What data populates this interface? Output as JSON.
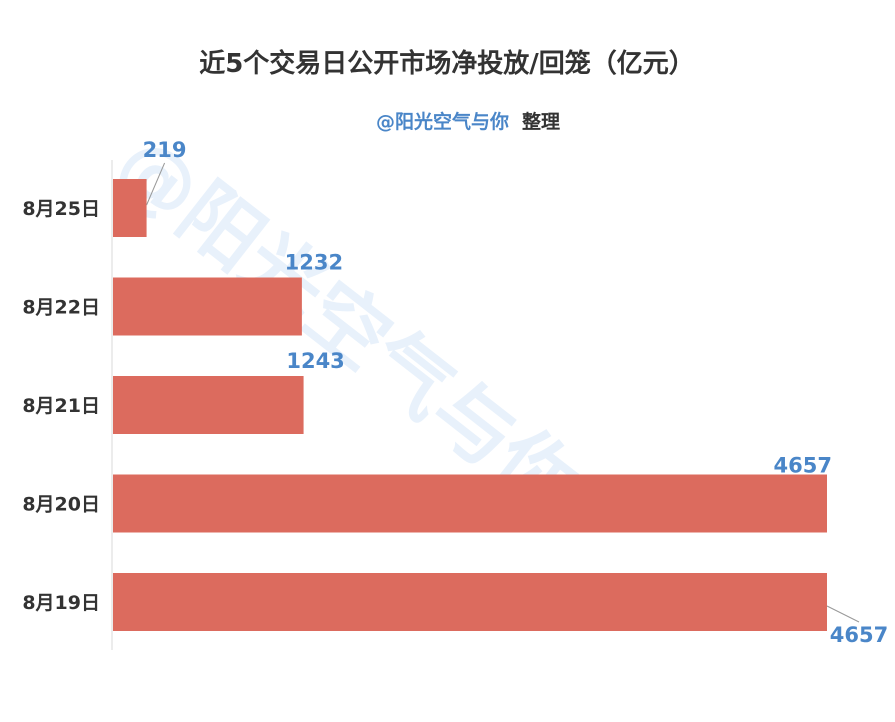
{
  "chart_data": {
    "type": "bar",
    "orientation": "horizontal",
    "title": "近5个交易日公开市场净投放/回笼（亿元）",
    "subtitle": {
      "handle": "@阳光空气与你",
      "suffix": "整理"
    },
    "watermark": "@阳光空气与你",
    "categories": [
      "8月25日",
      "8月22日",
      "8月21日",
      "8月20日",
      "8月19日"
    ],
    "values": [
      219,
      1232,
      1243,
      4657,
      4657
    ],
    "xlim": [
      0,
      4657
    ],
    "grid": false,
    "legend": "none",
    "colors": {
      "bar": "#DC6B5E",
      "label": "#4A86C8",
      "watermark": "#E8F1FB",
      "axis": "#D9D9D9",
      "leader": "#999999"
    }
  }
}
